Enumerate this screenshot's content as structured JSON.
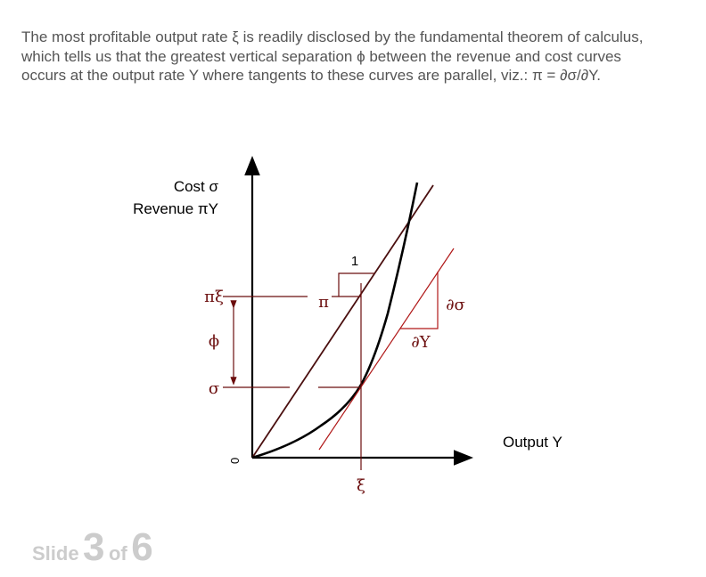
{
  "intro": {
    "line1_a": "The most profitable output rate ",
    "xi": "ξ",
    "line1_b": " is readily disclosed by the fundamental theorem of calculus,",
    "line2_a": "which tells us that the greatest vertical separation ",
    "phi": "ϕ",
    "line2_b": " between the revenue and cost curves",
    "line3_a": "occurs at the output rate Y where tangents to these curves are parallel, viz.:  ",
    "equation": "π = ∂σ/∂Y."
  },
  "diagram": {
    "y_axis_label_cost": "Cost σ",
    "y_axis_label_revenue": "Revenue πY",
    "x_axis_label": "Output Y",
    "origin_label": "0",
    "pi_xi_label": "πξ",
    "phi_label": "ϕ",
    "sigma_label": "σ",
    "pi_label": "π",
    "one_label": "1",
    "xi_label": "ξ",
    "partial_sigma_label": "∂σ",
    "partial_y_label": "∂Y",
    "colors": {
      "axis": "#000000",
      "revenue_line": "#4a0f0f",
      "cost_curve": "#000000",
      "guides": "#6b0d0d",
      "tangent": "#b01818"
    }
  },
  "footer": {
    "slide_word": "Slide",
    "current": "3",
    "of_word": "of",
    "total": "6"
  }
}
